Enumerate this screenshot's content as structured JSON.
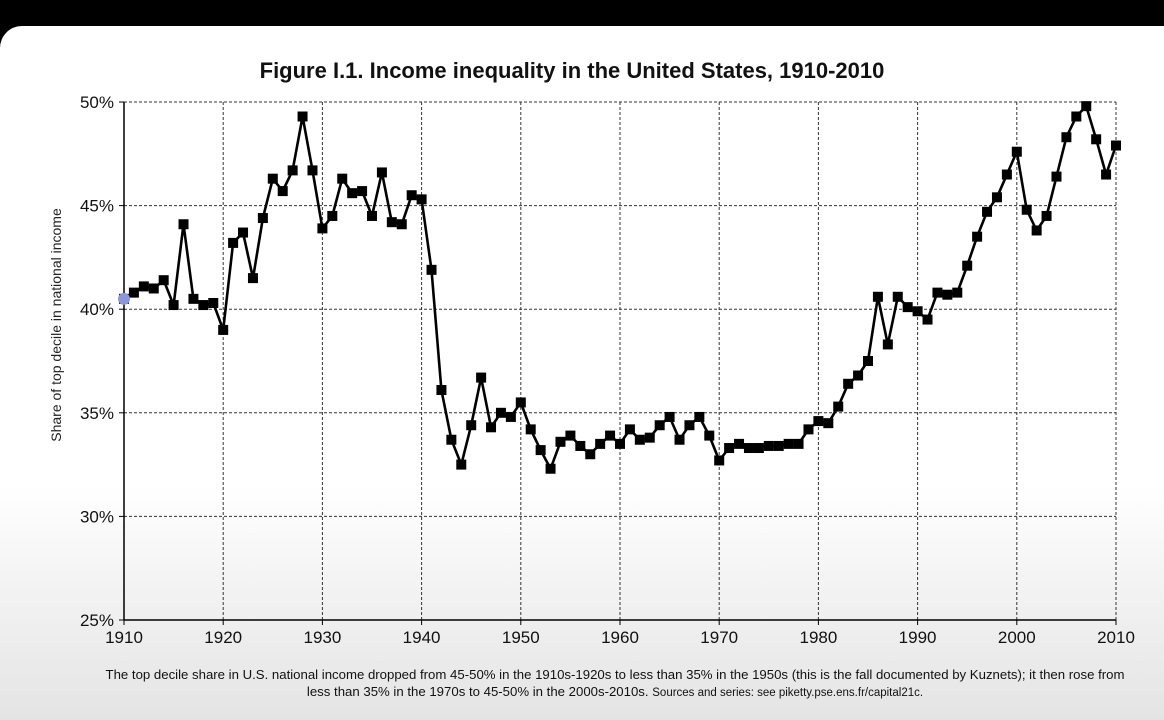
{
  "chart_data": {
    "type": "line",
    "title": "Figure I.1. Income inequality in the United States, 1910-2010",
    "ylabel": "Share of top decile in national income",
    "xlabel": "",
    "xlim": [
      1910,
      2010
    ],
    "ylim": [
      0.25,
      0.5
    ],
    "x_ticks": [
      "1910",
      "1920",
      "1930",
      "1940",
      "1950",
      "1960",
      "1970",
      "1980",
      "1990",
      "2000",
      "2010"
    ],
    "y_ticks": [
      "25%",
      "30%",
      "35%",
      "40%",
      "45%",
      "50%"
    ],
    "y_tick_values": [
      0.25,
      0.3,
      0.35,
      0.4,
      0.45,
      0.5
    ],
    "x_tick_values": [
      1910,
      1920,
      1930,
      1940,
      1950,
      1960,
      1970,
      1980,
      1990,
      2000,
      2010
    ],
    "grid": true,
    "series": [
      {
        "name": "",
        "color": "#000000",
        "marker": "square",
        "x": [
          1910,
          1911,
          1912,
          1913,
          1914,
          1915,
          1916,
          1917,
          1918,
          1919,
          1920,
          1921,
          1922,
          1923,
          1924,
          1925,
          1926,
          1927,
          1928,
          1929,
          1930,
          1931,
          1932,
          1933,
          1934,
          1935,
          1936,
          1937,
          1938,
          1939,
          1940,
          1941,
          1942,
          1943,
          1944,
          1945,
          1946,
          1947,
          1948,
          1949,
          1950,
          1951,
          1952,
          1953,
          1954,
          1955,
          1956,
          1957,
          1958,
          1959,
          1960,
          1961,
          1962,
          1963,
          1964,
          1965,
          1966,
          1967,
          1968,
          1969,
          1970,
          1971,
          1972,
          1973,
          1974,
          1975,
          1976,
          1977,
          1978,
          1979,
          1980,
          1981,
          1982,
          1983,
          1984,
          1985,
          1986,
          1987,
          1988,
          1989,
          1990,
          1991,
          1992,
          1993,
          1994,
          1995,
          1996,
          1997,
          1998,
          1999,
          2000,
          2001,
          2002,
          2003,
          2004,
          2005,
          2006,
          2007,
          2008,
          2009,
          2010
        ],
        "y": [
          0.405,
          0.408,
          0.411,
          0.41,
          0.414,
          0.402,
          0.441,
          0.405,
          0.402,
          0.403,
          0.39,
          0.432,
          0.437,
          0.415,
          0.444,
          0.463,
          0.457,
          0.467,
          0.493,
          0.467,
          0.439,
          0.445,
          0.463,
          0.456,
          0.457,
          0.445,
          0.466,
          0.442,
          0.441,
          0.455,
          0.453,
          0.419,
          0.361,
          0.337,
          0.325,
          0.344,
          0.367,
          0.343,
          0.35,
          0.348,
          0.355,
          0.342,
          0.332,
          0.323,
          0.336,
          0.339,
          0.334,
          0.33,
          0.335,
          0.339,
          0.335,
          0.342,
          0.337,
          0.338,
          0.344,
          0.348,
          0.337,
          0.344,
          0.348,
          0.339,
          0.327,
          0.333,
          0.335,
          0.333,
          0.333,
          0.334,
          0.334,
          0.335,
          0.335,
          0.342,
          0.346,
          0.345,
          0.353,
          0.364,
          0.368,
          0.375,
          0.406,
          0.383,
          0.406,
          0.401,
          0.399,
          0.395,
          0.408,
          0.407,
          0.408,
          0.421,
          0.435,
          0.447,
          0.454,
          0.465,
          0.476,
          0.448,
          0.438,
          0.445,
          0.464,
          0.483,
          0.493,
          0.498,
          0.482,
          0.465,
          0.479
        ]
      }
    ],
    "start_marker_color": "#8c96d8"
  },
  "caption": {
    "main": "The top decile share in U.S. national income dropped from 45-50% in the 1910s-1920s to less than 35% in the 1950s (this is the fall documented by Kuznets); it then rose from less than 35% in the 1970s to 45-50% in the 2000s-2010s.",
    "sources": "Sources and series: see piketty.pse.ens.fr/capital21c."
  }
}
